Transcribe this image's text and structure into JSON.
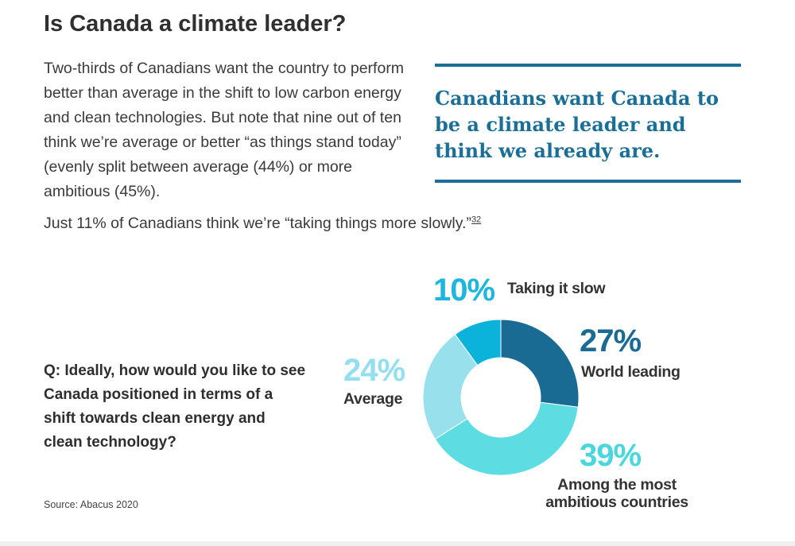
{
  "page": {
    "title": "Is Canada a climate leader?",
    "body_paragraph": "Two-thirds of Canadians want the country to perform better than average in the shift to low carbon energy and clean technologies. But note that nine out of ten think we’re average or better “as things stand today” (evenly split between average (44%) or more ambitious (45%).",
    "body_paragraph2": "Just 11% of Canadians think we’re “taking things more slowly.”",
    "footnote": "32",
    "pull_quote": "Canadians want Canada to be a climate leader and think we already are.",
    "question": "Q: Ideally, how would you like to see Canada positioned in terms of a shift towards clean energy and clean technology?",
    "source": "Source:  Abacus 2020"
  },
  "chart_data": {
    "type": "pie",
    "style": "donut",
    "title": "",
    "slices": [
      {
        "label": "World leading",
        "value": 27,
        "display": "27%",
        "color": "#196b93"
      },
      {
        "label": "Among the most ambitious countries",
        "label_lines": [
          "Among the most",
          "ambitious countries"
        ],
        "value": 39,
        "display": "39%",
        "color": "#5ddde1"
      },
      {
        "label": "Average",
        "value": 24,
        "display": "24%",
        "color": "#97e0ec"
      },
      {
        "label": "Taking it slow",
        "value": 10,
        "display": "10%",
        "color": "#0bb3da"
      }
    ],
    "label_colors": {
      "27": "#196b93",
      "39": "#49d6dc",
      "24": "#93dff0",
      "10": "#1fb6dd"
    }
  }
}
